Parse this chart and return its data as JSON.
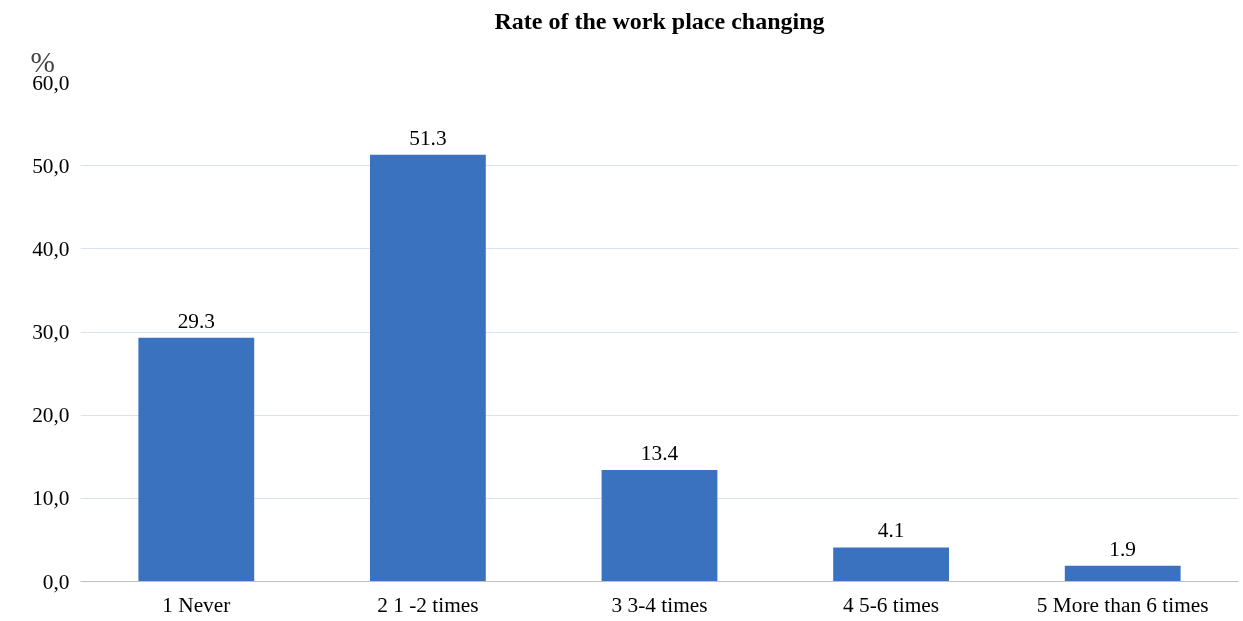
{
  "chart_data": {
    "type": "bar",
    "title": "Rate of the work place changing",
    "ylabel": "%",
    "categories": [
      "1 Never",
      "2 1 -2 times",
      "3 3-4 times",
      "4 5-6 times",
      "5 More than 6 times"
    ],
    "values": [
      29.3,
      51.3,
      13.4,
      4.1,
      1.9
    ],
    "color": "#3a72c0",
    "ylim": [
      0,
      60
    ],
    "yticks": [
      {
        "value": 0,
        "label": "0,0"
      },
      {
        "value": 10,
        "label": "10,0"
      },
      {
        "value": 20,
        "label": "20,0"
      },
      {
        "value": 30,
        "label": "30,0"
      },
      {
        "value": 40,
        "label": "40,0"
      },
      {
        "value": 50,
        "label": "50,0"
      },
      {
        "value": 60,
        "label": "60,0"
      }
    ],
    "grid": "y",
    "data_labels": true
  }
}
